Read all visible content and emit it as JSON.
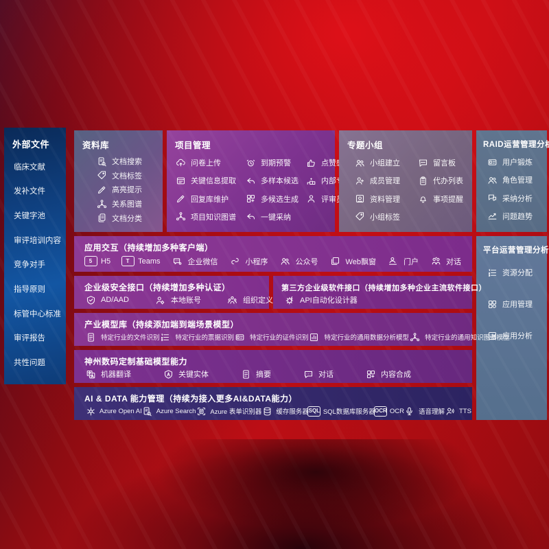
{
  "colors": {
    "background_red": "#c00f16",
    "sidebar_blue": "#1356a3",
    "panel_purple": "#7c2c8b",
    "panel_slate": "#5b7490",
    "panel_indigo": "#2c2361"
  },
  "sidebar": {
    "title": "外部文件",
    "items": [
      "临床文献",
      "发补文件",
      "关键字池",
      "审评培训内容",
      "竞争对手",
      "指导原则",
      "标管中心标准",
      "审评报告",
      "共性问题"
    ]
  },
  "panels": {
    "ziliaoku": {
      "title": "资料库",
      "items": [
        {
          "icon": "doc-search",
          "label": "文档搜索"
        },
        {
          "icon": "tag",
          "label": "文档标签"
        },
        {
          "icon": "highlight",
          "label": "高亮提示"
        },
        {
          "icon": "graph",
          "label": "关系图谱"
        },
        {
          "icon": "docs",
          "label": "文档分类"
        }
      ]
    },
    "project": {
      "title": "项目管理",
      "items": [
        {
          "icon": "cloud-up",
          "label": "问卷上传"
        },
        {
          "icon": "alarm",
          "label": "到期预警"
        },
        {
          "icon": "thumb",
          "label": "点赞感谢"
        },
        {
          "icon": "frame",
          "label": "关键信息提取"
        },
        {
          "icon": "reply",
          "label": "多样本候选"
        },
        {
          "icon": "rank",
          "label": "内部专家排名"
        },
        {
          "icon": "pencil",
          "label": "回复库维护"
        },
        {
          "icon": "grid-plus",
          "label": "多候选生成"
        },
        {
          "icon": "person",
          "label": "评审员画像"
        },
        {
          "icon": "graph",
          "label": "项目知识图谱"
        },
        {
          "icon": "reply",
          "label": "一键采纳"
        }
      ]
    },
    "groups": {
      "title": "专题小组",
      "items": [
        {
          "icon": "people",
          "label": "小组建立"
        },
        {
          "icon": "bbs",
          "label": "留言板"
        },
        {
          "icon": "person-add",
          "label": "成员管理"
        },
        {
          "icon": "clipboard",
          "label": "代办列表"
        },
        {
          "icon": "album",
          "label": "资料管理"
        },
        {
          "icon": "bell",
          "label": "事项提醒"
        },
        {
          "icon": "tag",
          "label": "小组标签"
        }
      ]
    },
    "raid": {
      "title": "RAID运营管理分析",
      "items": [
        {
          "icon": "idcard",
          "label": "用户锻炼"
        },
        {
          "icon": "people",
          "label": "角色管理"
        },
        {
          "icon": "chat-qa",
          "label": "采纳分析"
        },
        {
          "icon": "trend",
          "label": "问题趋势"
        }
      ]
    },
    "platform": {
      "title": "平台运营管理分析",
      "items": [
        {
          "icon": "list",
          "label": "资源分配"
        },
        {
          "icon": "apps",
          "label": "应用管理"
        },
        {
          "icon": "chart-box",
          "label": "应用分析"
        }
      ]
    },
    "interaction": {
      "title": "应用交互（持续增加多种客户端）",
      "items": [
        {
          "icon": "h5",
          "label": "H5"
        },
        {
          "icon": "teams",
          "label": "Teams"
        },
        {
          "icon": "wechat",
          "label": "企业微信"
        },
        {
          "icon": "mini",
          "label": "小程序"
        },
        {
          "icon": "pub",
          "label": "公众号"
        },
        {
          "icon": "webwin",
          "label": "Web飘窗"
        },
        {
          "icon": "portal",
          "label": "门户"
        },
        {
          "icon": "dialog",
          "label": "对话"
        }
      ]
    },
    "security": {
      "title": "企业级安全接口（持续增加多种认证）",
      "items": [
        {
          "icon": "shield",
          "label": "AD/AAD"
        },
        {
          "icon": "person-gear",
          "label": "本地账号"
        },
        {
          "icon": "org",
          "label": "组织定义"
        }
      ]
    },
    "thirdparty": {
      "title": "第三方企业级软件接口（持续增加多种企业主流软件接口）",
      "items": [
        {
          "icon": "api",
          "label": "API自动化设计器"
        }
      ]
    },
    "models": {
      "title": "产业模型库（持续添加端到端场景模型）",
      "items": [
        {
          "icon": "doc",
          "label": "特定行业的文件识别"
        },
        {
          "icon": "list",
          "label": "特定行业的票据识别"
        },
        {
          "icon": "idcard",
          "label": "特定行业的证件识别"
        },
        {
          "icon": "chart-box",
          "label": "特定行业的通用数据分析模型"
        },
        {
          "icon": "graph",
          "label": "特定行业的通用知识图谱模型"
        }
      ]
    },
    "basemodel": {
      "title": "神州数码定制基础模型能力",
      "items": [
        {
          "icon": "translate",
          "label": "机器翻译"
        },
        {
          "icon": "shield-a",
          "label": "关键实体"
        },
        {
          "icon": "doc",
          "label": "摘要"
        },
        {
          "icon": "chat",
          "label": "对话"
        },
        {
          "icon": "grid-plus",
          "label": "内容合成"
        }
      ]
    },
    "aidata": {
      "title": "AI & DATA 能力管理（持续为接入更多AI&DATA能力）",
      "items": [
        {
          "icon": "openai",
          "label": "Azure Open AI"
        },
        {
          "icon": "doc-search",
          "label": "Azure Search"
        },
        {
          "icon": "scan-doc",
          "label": "Azure 表单识别器"
        },
        {
          "icon": "db",
          "label": "缓存服务器"
        },
        {
          "icon": "sql",
          "label": "SQL数据库服务器"
        },
        {
          "icon": "ocr",
          "label": "OCR"
        },
        {
          "icon": "speech",
          "label": "语音理解"
        },
        {
          "icon": "tts",
          "label": "TTS"
        }
      ]
    }
  }
}
